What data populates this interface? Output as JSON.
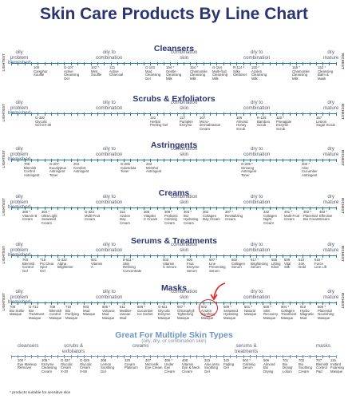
{
  "title": "Skin Care Products By Line Chart",
  "end_labels": {
    "left": "LIGHTEST",
    "right": "RICHEST"
  },
  "axis_labels": [
    {
      "text": "oily\nproblem\nblemished",
      "x": 10
    },
    {
      "text": "oily to\ncombination",
      "x": 120
    },
    {
      "text": "combination\nskin",
      "x": 214
    },
    {
      "text": "dry to\ncombination",
      "x": 305
    },
    {
      "text": "dry\nmature",
      "x": 405
    }
  ],
  "sections": [
    {
      "title": "Cleansers",
      "products": [
        {
          "num": "100",
          "name": "Camphor\nSouffle",
          "x": 42
        },
        {
          "num": "G-107",
          "name": "Active\nCleansing\nGel",
          "x": 80
        },
        {
          "num": "102 *",
          "name": "Mint\nSouffle",
          "x": 114
        },
        {
          "num": "121",
          "name": "Active\nCharcoal",
          "x": 137
        },
        {
          "num": "G-103",
          "name": "Mud\nCleansing\nGel",
          "x": 182
        },
        {
          "num": "104 *",
          "name": "Gentle\nCleansing\nMilk",
          "x": 208
        },
        {
          "num": "154 *",
          "name": "Chamomile\nCleansing\nMilk",
          "x": 238
        },
        {
          "num": "G-154",
          "name": "Multi-fruit\nCleansing\nMilk",
          "x": 266
        },
        {
          "num": "R-114 *",
          "name": "Silky\nCleanser",
          "x": 292
        },
        {
          "num": "150 *",
          "name": "Azulen\nCleansing\nMilk",
          "x": 315
        },
        {
          "num": "155 *",
          "name": "Chamomile\nCleansing\nMilk",
          "x": 366
        },
        {
          "num": "152 *",
          "name": "Cleansing\nBalm &\nMask",
          "x": 398
        }
      ]
    },
    {
      "title": "Scrubs & Exfoliators",
      "products": [
        {
          "num": "G-330",
          "name": "Glycolic\nGel GX-30",
          "x": 44
        },
        {
          "num": "110",
          "name": "Herbal\nPeeling Gel",
          "x": 188
        },
        {
          "num": "127",
          "name": "Pumpkin\nEnzyme",
          "x": 225
        },
        {
          "num": "107",
          "name": "Micro-\ndermabrasion\nCream",
          "x": 250
        },
        {
          "num": "106",
          "name": "Almond\nHoney\nScrub",
          "x": 296
        },
        {
          "num": "K-125",
          "name": "Bamboo\nScrub",
          "x": 322
        },
        {
          "num": "120 *",
          "name": "Pineapple\nEnzyme\nScrub",
          "x": 346
        },
        {
          "num": "157",
          "name": "Lemon\nSugar Scrub",
          "x": 396
        }
      ]
    },
    {
      "title": "Astringents",
      "products": [
        {
          "num": "705",
          "name": "Blemish\nControl\nAstringent",
          "x": 30
        },
        {
          "num": "G-207",
          "name": "Eucalyptus\nAstringent\nToner",
          "x": 62
        },
        {
          "num": "204",
          "name": "Comfort\nAstringent",
          "x": 92
        },
        {
          "num": "G-206",
          "name": "Calendula\nToner",
          "x": 151
        },
        {
          "num": "203",
          "name": "Menthol\nAstringent",
          "x": 183
        },
        {
          "num": "G-205 *",
          "name": "Ginseng\nAstringent\nToner",
          "x": 302
        },
        {
          "num": "202 *",
          "name": "Aloe\nCucumber\nAstringent",
          "x": 378
        }
      ]
    },
    {
      "title": "Creams",
      "products": [
        {
          "num": "300 *",
          "name": "Vitamin B\nCream",
          "x": 28
        },
        {
          "num": "304 *",
          "name": "Ultra Light\nSeaweed\nCream",
          "x": 52
        },
        {
          "num": "G-323",
          "name": "Multi-Fruit\nCream",
          "x": 106
        },
        {
          "num": "321",
          "name": "Azulen\nDay\nCream",
          "x": 150
        },
        {
          "num": "305",
          "name": "Vitaplex\nC Cream",
          "x": 180
        },
        {
          "num": "309 *",
          "name": "Probiotic\nCalming\nCream",
          "x": 206
        },
        {
          "num": "303 *",
          "name": "Bio\nHydrating\nCream",
          "x": 230
        },
        {
          "num": "302",
          "name": "Collagen\nDay Cream",
          "x": 254
        },
        {
          "num": "307 *",
          "name": "Revitalizing\nCream",
          "x": 282
        },
        {
          "num": "322",
          "name": "Collagen\nNight\nCream",
          "x": 330
        },
        {
          "num": "401 *",
          "name": "Multi-Fruit\nCream",
          "x": 356
        },
        {
          "num": "402 *",
          "name": "Placental\nBio Cream",
          "x": 380
        },
        {
          "num": "403 *",
          "name": "Effective\nCream",
          "x": 400
        }
      ]
    },
    {
      "title": "Serums & Treatments",
      "products": [
        {
          "num": "703",
          "name": "Blemish\nControl\nGel",
          "x": 28
        },
        {
          "num": "715",
          "name": "Pic Clear\nSpot\nGel",
          "x": 50
        },
        {
          "num": "G-322",
          "name": "Alpha\nBrightener",
          "x": 72
        },
        {
          "num": "501",
          "name": "Vitamin\nA",
          "x": 114
        },
        {
          "num": "8-511 *",
          "name": "Skin\nRefining\nConcentrate",
          "x": 154
        },
        {
          "num": "503",
          "name": "Vitamin\nC Serum",
          "x": 204
        },
        {
          "num": "500",
          "name": "Fruit\nEnzyme\nSerum",
          "x": 234
        },
        {
          "num": "507 *",
          "name": "Line\nPreventing\nSerum",
          "x": 262
        },
        {
          "num": "502",
          "name": "Collagen\nSerum",
          "x": 290
        },
        {
          "num": "517 *",
          "name": "Brightening\nSerum",
          "x": 314
        },
        {
          "num": "555",
          "name": "Lifting\nElixir",
          "x": 340
        },
        {
          "num": "509",
          "name": "Vital\nSilk",
          "x": 356
        },
        {
          "num": "510",
          "name": "24K\nGold",
          "x": 374
        },
        {
          "num": "515 *",
          "name": "Force\nLine Lift",
          "x": 394
        }
      ]
    },
    {
      "title": "Masks",
      "products": [
        {
          "num": "708",
          "name": "Bio Sulfur\nMasque",
          "x": 12
        },
        {
          "num": "G-712",
          "name": "Bio\nTreatment\nMasque",
          "x": 36
        },
        {
          "num": "709",
          "name": "Blemish\nControl\nMasque",
          "x": 62
        },
        {
          "num": "710",
          "name": "Bio\nPurifying\nMasque",
          "x": 82
        },
        {
          "num": "603",
          "name": "Mud\nMasque",
          "x": 104
        },
        {
          "num": "605 *",
          "name": "Volcanic\nMud\nMasque",
          "x": 128
        },
        {
          "num": "611",
          "name": "Mediter-\nranean\nMud",
          "x": 150
        },
        {
          "num": "608 *",
          "name": "Cucumber\nIce Sorbet",
          "x": 172
        },
        {
          "num": "G-611",
          "name": "Glycolic\nEnzyme\nMasque",
          "x": 198
        },
        {
          "num": "607 *",
          "name": "Chlorophyll\nTightening\nMasque",
          "x": 222
        },
        {
          "num": "602",
          "name": "Azulen\nSoothing\nMasque",
          "x": 252
        },
        {
          "num": "609 *",
          "name": "Seaweed\nHydrating\nMasque",
          "x": 280
        },
        {
          "num": "601 *",
          "name": "Natural\nMasque",
          "x": 306
        },
        {
          "num": "600 *",
          "name": "Skin\nRecovery\nMasque",
          "x": 330
        },
        {
          "num": "604 *",
          "name": "Collagen\nTreatment\nMasque",
          "x": 352
        },
        {
          "num": "610",
          "name": "Hydro\nMagnetic\nMud",
          "x": 376
        },
        {
          "num": "606 *",
          "name": "Placental\nNourishing\nMasque",
          "x": 398
        }
      ]
    }
  ],
  "multi": {
    "title": "Great For Multiple Skin Types",
    "subtitle": "(oily, dry, or combination skin)",
    "categories": [
      {
        "text": "cleansers",
        "x": 22
      },
      {
        "text": "scrubs &\nexfoliators",
        "x": 78
      },
      {
        "text": "creams",
        "x": 166
      },
      {
        "text": "serums &\ntreatments",
        "x": 294
      },
      {
        "text": "masks",
        "x": 396
      }
    ],
    "products": [
      {
        "num": "100 *",
        "name": "Eye Makeup\nRemover",
        "x": 22
      },
      {
        "num": "109 *",
        "name": "Enzyme\nCleansing\nCream",
        "x": 52
      },
      {
        "num": "G-327",
        "name": "Glycolic\nCream\nX-30",
        "x": 76
      },
      {
        "num": "G-329",
        "name": "Glycolic\nCream\nX-50",
        "x": 100
      },
      {
        "num": "308",
        "name": "Lemon\nSoothing\nGel",
        "x": 126
      },
      {
        "num": "320",
        "name": "Cream\nPlatinum",
        "x": 156
      },
      {
        "num": "407",
        "name": "Microsilk\nEye Cream",
        "x": 182
      },
      {
        "num": "406 *",
        "name": "Under\nEye\nCream",
        "x": 206
      },
      {
        "num": "408",
        "name": "Vitamin\nEye & Neck\nCream",
        "x": 228
      },
      {
        "num": "323",
        "name": "Aloe Vera\nSoothing\nGel",
        "x": 256
      },
      {
        "num": "322",
        "name": "Fading\nGel",
        "x": 280
      },
      {
        "num": "504 *",
        "name": "Calming\nSerum",
        "x": 304
      },
      {
        "num": "506",
        "name": "Almond\nBio\nDrying",
        "x": 330
      },
      {
        "num": "701",
        "name": "Bio\nDrying\nLotion",
        "x": 354
      },
      {
        "num": "702",
        "name": "Bio\nSoothing\nCream",
        "x": 374
      },
      {
        "num": "707",
        "name": "Blemish\nControl\nPad",
        "x": 396
      },
      {
        "num": "115",
        "name": "Instant\nFoaming\nMasque",
        "x": 414
      }
    ]
  },
  "footnote": "* products suitable for sensitive skin",
  "colors": {
    "title": "#2b3472",
    "line": "#2e7d9a",
    "multi": "#6b95c9",
    "highlight": "#e02222"
  }
}
